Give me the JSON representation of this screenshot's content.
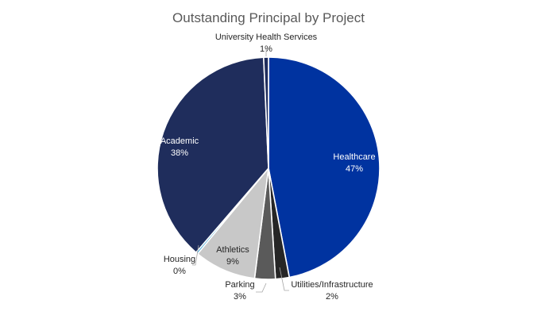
{
  "chart_data": {
    "type": "pie",
    "title": "Outstanding Principal by Project",
    "slices": [
      {
        "name": "Healthcare",
        "value": 47,
        "label": "47%",
        "color": "#0033a0",
        "label_color": "#ffffff",
        "label_inside": true
      },
      {
        "name": "Utilities/Infrastructure",
        "value": 2,
        "label": "2%",
        "color": "#262626",
        "label_color": "#262626",
        "label_inside": false
      },
      {
        "name": "Parking",
        "value": 3,
        "label": "3%",
        "color": "#5a5a5a",
        "label_color": "#262626",
        "label_inside": false
      },
      {
        "name": "Athletics",
        "value": 9,
        "label": "9%",
        "color": "#c8c8c8",
        "label_color": "#262626",
        "label_inside": true
      },
      {
        "name": "Housing",
        "value": 0.3,
        "label": "0%",
        "color": "#2e9fd6",
        "label_color": "#262626",
        "label_inside": false
      },
      {
        "name": "Academic",
        "value": 38,
        "label": "38%",
        "color": "#1f2d5c",
        "label_color": "#ffffff",
        "label_inside": true
      },
      {
        "name": "University Health Services",
        "value": 0.7,
        "label": "1%",
        "color": "#1f2d5c",
        "label_color": "#262626",
        "label_inside": false
      }
    ]
  }
}
